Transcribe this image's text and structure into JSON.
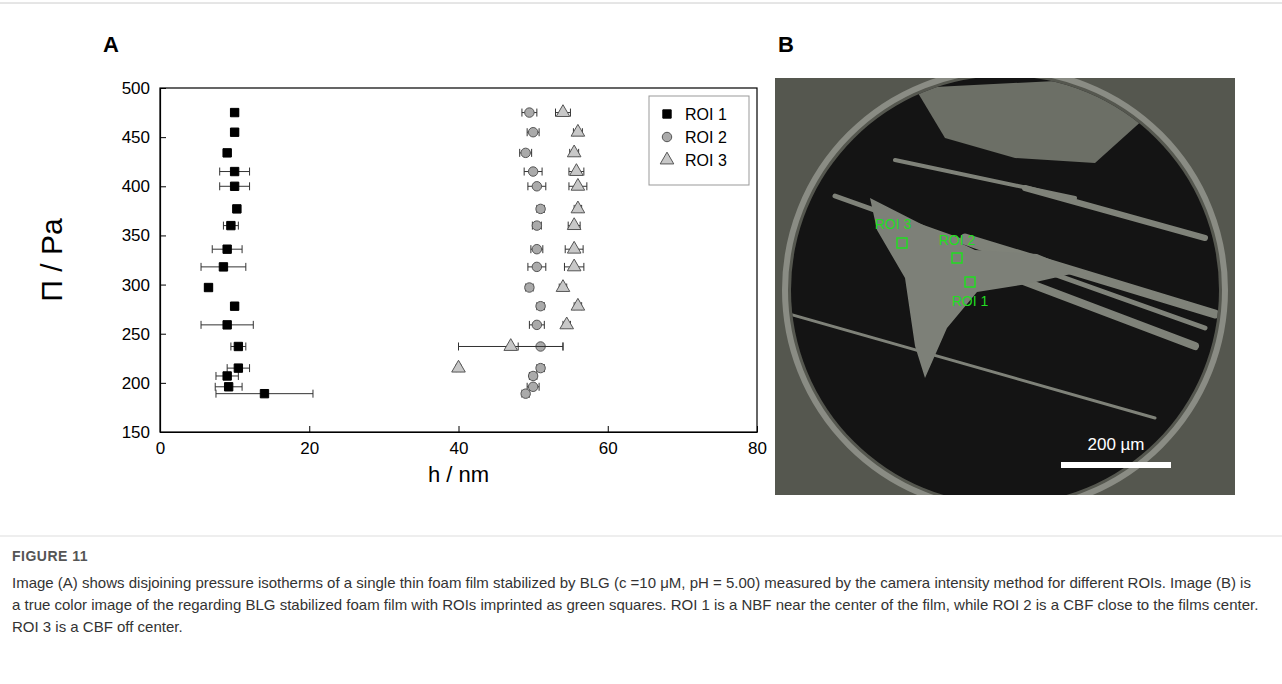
{
  "chart_data": {
    "type": "scatter",
    "x_label": "h / nm",
    "y_label": "Π / Pa",
    "xlim": [
      0,
      80
    ],
    "xticks": [
      0,
      20,
      40,
      60,
      80
    ],
    "ylim": [
      150,
      500
    ],
    "yticks": [
      150,
      200,
      250,
      300,
      350,
      400,
      450,
      500
    ],
    "legend": "top-right",
    "series": [
      {
        "name": "ROI 1",
        "color": "#000000",
        "marker": "square",
        "values": [
          475,
          455,
          434,
          415,
          400,
          377,
          360,
          336,
          318,
          297,
          278,
          259,
          237,
          215,
          207,
          196,
          189
        ],
        "x": [
          10,
          10,
          9,
          10,
          10,
          10.3,
          9.5,
          9,
          8.5,
          6.5,
          10,
          9,
          10.5,
          10.5,
          9,
          9.2,
          14
        ],
        "x_error": [
          0.5,
          0.5,
          0.5,
          2,
          2,
          0.5,
          1,
          2,
          3,
          0.5,
          0.5,
          3.5,
          1,
          1.5,
          1.5,
          1.8,
          6.5
        ]
      },
      {
        "name": "ROI 2",
        "color": "#aaaaaa",
        "marker": "circle",
        "values": [
          475,
          455,
          434,
          415,
          400,
          377,
          360,
          336,
          318,
          297,
          278,
          259,
          237,
          215,
          207,
          196,
          189
        ],
        "x": [
          49.5,
          50,
          49,
          50,
          50.5,
          51,
          50.5,
          50.5,
          50.5,
          49.5,
          51,
          50.5,
          51,
          51,
          50,
          50,
          49
        ],
        "x_error": [
          1,
          0.8,
          0.8,
          1.2,
          1.2,
          0.5,
          0.6,
          0.8,
          1.2,
          0.5,
          0.5,
          1,
          3,
          0.5,
          0.5,
          0.8,
          0.5
        ]
      },
      {
        "name": "ROI 3",
        "color": "#c8c8c8",
        "marker": "triangle",
        "values": [
          475,
          455,
          434,
          415,
          400,
          377,
          360,
          336,
          318,
          297,
          278,
          259,
          237,
          215
        ],
        "x": [
          54,
          56,
          55.5,
          55.8,
          56,
          56,
          55.5,
          55.5,
          55.5,
          54,
          56,
          54.5,
          47,
          40
        ],
        "x_error": [
          1,
          0.6,
          0.6,
          1,
          1.2,
          0.5,
          0.8,
          1.2,
          1.3,
          0.5,
          0.5,
          0.5,
          7,
          0.3
        ]
      }
    ]
  },
  "panel_a": {
    "label": "A"
  },
  "panel_b": {
    "label": "B",
    "rois": [
      "ROI 1",
      "ROI 2",
      "ROI 3"
    ],
    "scale_bar": "200 µm"
  },
  "caption": {
    "label": "FIGURE 11",
    "text": "Image (A) shows disjoining pressure isotherms of a single thin foam film stabilized by BLG (c =10 μM, pH = 5.00) measured by the camera intensity method for different ROIs. Image (B) is a true color image of the regarding BLG stabilized foam film with ROIs imprinted as green squares. ROI 1 is a NBF near the center of the film, while ROI 2 is a CBF close to the films center. ROI 3 is a CBF off center."
  }
}
